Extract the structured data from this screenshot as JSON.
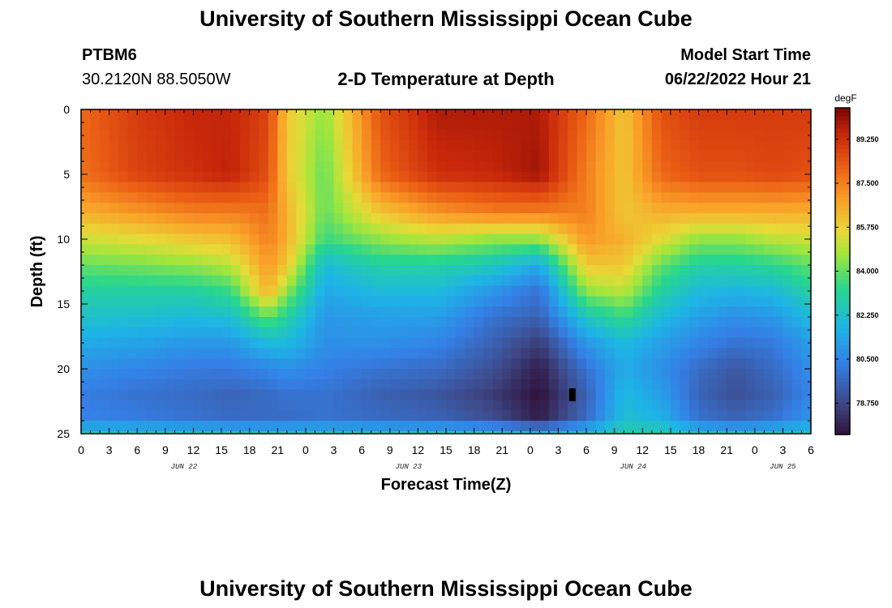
{
  "header": {
    "title": "University of Southern Mississippi Ocean Cube",
    "footer_title": "University of Southern Mississippi Ocean Cube",
    "station_id": "PTBM6",
    "coordinates": "30.2120N  88.5050W",
    "model_start_label": "Model Start Time",
    "model_start_value": "06/22/2022 Hour 21"
  },
  "chart_data": {
    "type": "heatmap",
    "title": "2-D Temperature at Depth",
    "xlabel": "Forecast Time(Z)",
    "ylabel": "Depth (ft)",
    "ylim": [
      0,
      25
    ],
    "y_inverted": true,
    "x_hours_range": [
      0,
      78
    ],
    "x_tick_labels": [
      "0",
      "3",
      "6",
      "9",
      "12",
      "15",
      "18",
      "21",
      "0",
      "3",
      "6",
      "9",
      "12",
      "15",
      "18",
      "21",
      "0",
      "3",
      "6",
      "9",
      "12",
      "15",
      "18",
      "21",
      "0",
      "3",
      "6"
    ],
    "date_labels": [
      {
        "label": "JUN 22",
        "hour": 11
      },
      {
        "label": "JUN 23",
        "hour": 35
      },
      {
        "label": "JUN 24",
        "hour": 59
      },
      {
        "label": "JUN 25",
        "hour": 75
      }
    ],
    "y_ticks": [
      0,
      5,
      10,
      15,
      20,
      25
    ],
    "colorbar": {
      "unit": "degF",
      "min": 77.5,
      "max": 90.5,
      "tick_labels": [
        "78.750",
        "80.500",
        "82.250",
        "84.000",
        "85.750",
        "87.500",
        "89.250"
      ],
      "tick_values": [
        78.75,
        80.5,
        82.25,
        84.0,
        85.75,
        87.5,
        89.25
      ]
    },
    "depth_profile_rows": [
      0,
      5,
      8,
      10,
      12,
      14,
      16,
      18,
      20,
      22,
      24,
      25
    ],
    "time_columns_hours": [
      0,
      6,
      12,
      16,
      20,
      22,
      26,
      32,
      38,
      44,
      49,
      54,
      58,
      62,
      66,
      70,
      74,
      78
    ],
    "temperature_degF": [
      [
        88.0,
        89.0,
        89.5,
        89.5,
        88.8,
        86.0,
        84.5,
        88.5,
        89.8,
        89.8,
        89.8,
        88.0,
        86.0,
        88.5,
        89.0,
        89.0,
        89.0,
        89.0
      ],
      [
        87.8,
        88.8,
        89.3,
        89.6,
        88.5,
        86.0,
        84.0,
        88.0,
        89.3,
        89.5,
        90.0,
        87.5,
        86.0,
        88.0,
        88.5,
        88.5,
        88.7,
        88.5
      ],
      [
        86.5,
        87.0,
        87.5,
        87.5,
        87.8,
        86.5,
        84.0,
        86.0,
        87.0,
        87.5,
        87.5,
        87.5,
        86.0,
        86.5,
        86.5,
        86.5,
        86.5,
        86.5
      ],
      [
        85.2,
        85.5,
        86.0,
        86.2,
        87.5,
        86.5,
        83.5,
        84.5,
        85.0,
        84.5,
        84.5,
        87.0,
        86.5,
        85.5,
        84.5,
        84.5,
        85.0,
        85.2
      ],
      [
        84.0,
        84.2,
        84.5,
        85.0,
        87.0,
        86.0,
        82.0,
        83.0,
        83.0,
        82.5,
        81.5,
        86.0,
        86.0,
        84.0,
        83.0,
        83.0,
        83.3,
        84.0
      ],
      [
        83.0,
        83.0,
        83.0,
        83.5,
        86.5,
        84.5,
        81.5,
        82.0,
        82.0,
        81.0,
        80.0,
        84.5,
        85.0,
        83.0,
        82.0,
        81.8,
        82.0,
        83.0
      ],
      [
        82.3,
        82.2,
        82.0,
        82.2,
        84.0,
        83.0,
        81.0,
        81.2,
        81.2,
        80.0,
        79.5,
        82.5,
        83.5,
        82.0,
        81.2,
        80.8,
        81.0,
        82.0
      ],
      [
        81.5,
        81.3,
        81.0,
        81.0,
        82.0,
        82.0,
        80.8,
        80.8,
        80.5,
        79.5,
        78.5,
        81.0,
        82.0,
        81.2,
        80.5,
        80.0,
        80.2,
        81.2
      ],
      [
        80.8,
        80.5,
        80.2,
        80.2,
        80.5,
        80.8,
        80.4,
        80.0,
        79.8,
        79.0,
        77.8,
        80.0,
        81.5,
        80.8,
        79.8,
        79.2,
        79.8,
        80.8
      ],
      [
        80.3,
        80.0,
        79.8,
        79.6,
        79.8,
        80.0,
        80.0,
        79.5,
        79.2,
        78.5,
        77.5,
        79.5,
        82.0,
        81.2,
        79.6,
        79.0,
        79.5,
        80.5
      ],
      [
        80.5,
        80.3,
        80.0,
        79.8,
        79.8,
        79.8,
        80.0,
        79.8,
        79.6,
        79.0,
        77.8,
        79.8,
        82.2,
        81.8,
        80.0,
        79.6,
        80.0,
        81.0
      ],
      [
        82.5,
        82.5,
        82.5,
        82.5,
        82.5,
        82.5,
        82.5,
        82.5,
        82.5,
        82.5,
        82.0,
        82.5,
        83.0,
        83.0,
        82.5,
        82.5,
        82.5,
        82.5
      ]
    ],
    "marker": {
      "hour": 52.5,
      "depth": 22
    }
  }
}
